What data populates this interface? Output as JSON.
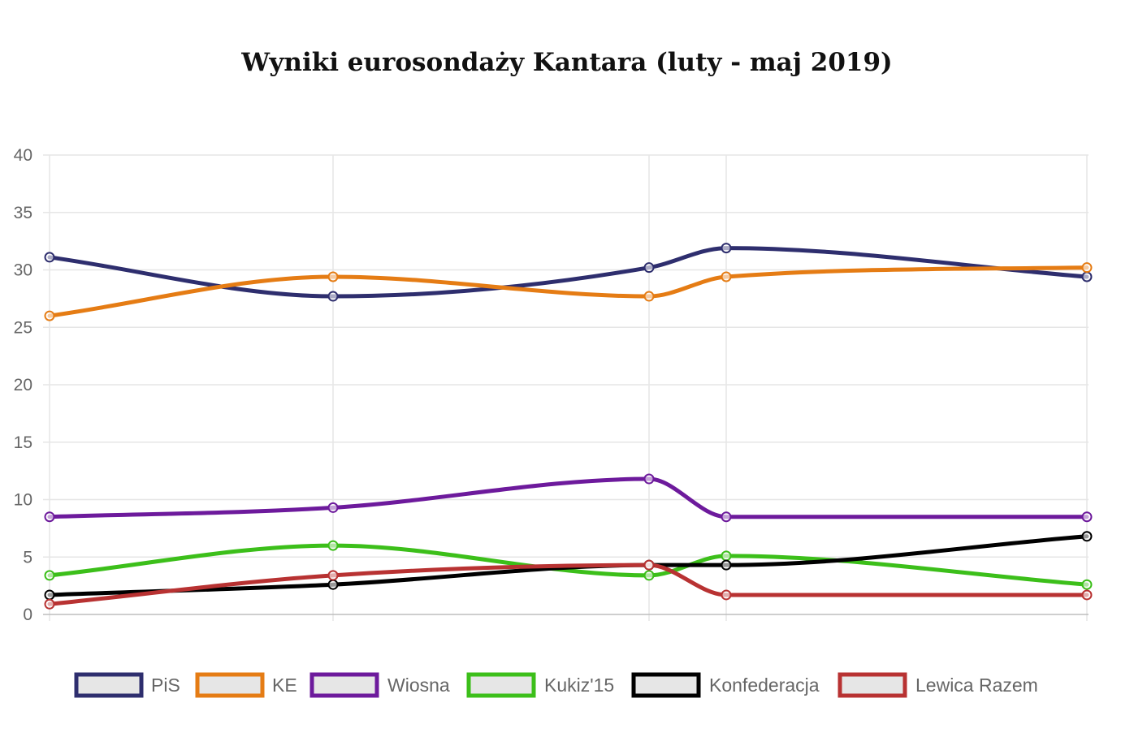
{
  "chart_data": {
    "type": "line",
    "title": "Wyniki eurosondaży Kantara (luty - maj 2019)",
    "xlabel": "",
    "ylabel": "",
    "x": [
      0,
      1,
      2,
      3,
      4
    ],
    "ylim": [
      0,
      40
    ],
    "yticks": [
      0,
      5,
      10,
      15,
      20,
      25,
      30,
      35,
      40
    ],
    "grid": true,
    "legend_position": "bottom",
    "series": [
      {
        "name": "PiS",
        "color": "#2e2e6e",
        "values": [
          31.1,
          27.7,
          30.2,
          31.9,
          29.4
        ]
      },
      {
        "name": "KE",
        "color": "#e57c14",
        "values": [
          26.0,
          29.4,
          27.7,
          29.4,
          30.2
        ]
      },
      {
        "name": "Wiosna",
        "color": "#6d1a9c",
        "values": [
          8.5,
          9.3,
          11.8,
          8.5,
          8.5
        ]
      },
      {
        "name": "Kukiz'15",
        "color": "#3cbf1a",
        "values": [
          3.4,
          6.0,
          3.4,
          5.1,
          2.6
        ]
      },
      {
        "name": "Konfederacja",
        "color": "#000000",
        "values": [
          1.7,
          2.6,
          4.3,
          4.3,
          6.8
        ]
      },
      {
        "name": "Lewica Razem",
        "color": "#b83232",
        "values": [
          0.9,
          3.4,
          4.3,
          1.7,
          1.7
        ]
      }
    ]
  }
}
